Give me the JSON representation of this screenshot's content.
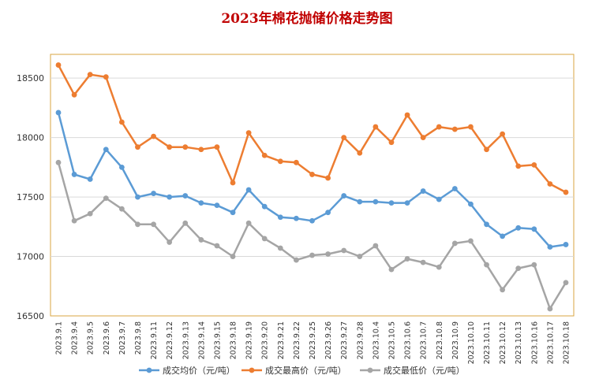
{
  "chart_data": {
    "type": "line",
    "title": "2023年棉花抛储价格走势图",
    "xlabel": "",
    "ylabel": "",
    "ylim": [
      16500,
      18700
    ],
    "yticks": [
      16500,
      17000,
      17500,
      18000,
      18500
    ],
    "grid": "horizontal",
    "legend_position": "bottom",
    "categories": [
      "2023.9.1",
      "2023.9.4",
      "2023.9.5",
      "2023.9.6",
      "2023.9.7",
      "2023.9.8",
      "2023.9.11",
      "2023.9.12",
      "2023.9.13",
      "2023.9.14",
      "2023.9.15",
      "2023.9.18",
      "2023.9.19",
      "2023.9.20",
      "2023.9.21",
      "2023.9.22",
      "2023.9.25",
      "2023.9.26",
      "2023.9.27",
      "2023.9.28",
      "2023.10.4",
      "2023.10.5",
      "2023.10.6",
      "2023.10.7",
      "2023.10.8",
      "2023.10.9",
      "2023.10.10",
      "2023.10.11",
      "2023.10.12",
      "2023.10.13",
      "2023.10.16",
      "2023.10.17",
      "2023.10.18"
    ],
    "series": [
      {
        "name": "成交均价（元/吨）",
        "color": "#5b9bd5",
        "values": [
          18210,
          17690,
          17650,
          17900,
          17750,
          17500,
          17530,
          17500,
          17510,
          17450,
          17430,
          17370,
          17560,
          17420,
          17330,
          17320,
          17300,
          17370,
          17510,
          17460,
          17460,
          17450,
          17450,
          17550,
          17480,
          17570,
          17440,
          17270,
          17170,
          17240,
          17230,
          17080,
          17100
        ]
      },
      {
        "name": "成交最高价（元/吨）",
        "color": "#ed7d31",
        "values": [
          18610,
          18360,
          18530,
          18510,
          18130,
          17920,
          18010,
          17920,
          17920,
          17900,
          17920,
          17620,
          18040,
          17850,
          17800,
          17790,
          17690,
          17660,
          18000,
          17870,
          18090,
          17960,
          18190,
          18000,
          18090,
          18070,
          18090,
          17900,
          18030,
          17760,
          17770,
          17610,
          17540
        ]
      },
      {
        "name": "成交最低价（元/吨）",
        "color": "#a5a5a5",
        "values": [
          17790,
          17300,
          17360,
          17490,
          17400,
          17270,
          17270,
          17120,
          17280,
          17140,
          17090,
          17000,
          17280,
          17150,
          17070,
          16970,
          17010,
          17020,
          17050,
          17000,
          17090,
          16890,
          16980,
          16950,
          16910,
          17110,
          17130,
          16930,
          16720,
          16900,
          16930,
          16560,
          16780
        ]
      }
    ]
  }
}
